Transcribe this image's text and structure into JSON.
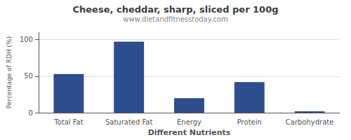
{
  "chart_data": {
    "type": "bar",
    "title": "Cheese, cheddar, sharp, sliced per 100g",
    "subtitle": "www.dietandfitnesstoday.com",
    "xlabel": "Different Nutrients",
    "ylabel": "Percentage of RDH (%)",
    "categories": [
      "Total Fat",
      "Saturated Fat",
      "Energy",
      "Protein",
      "Carbohydrate"
    ],
    "values": [
      53,
      97,
      20,
      42,
      2
    ],
    "color": "#2e4d8e",
    "ylim": [
      0,
      110
    ],
    "yticks": [
      0,
      50,
      100
    ],
    "grid": true
  }
}
